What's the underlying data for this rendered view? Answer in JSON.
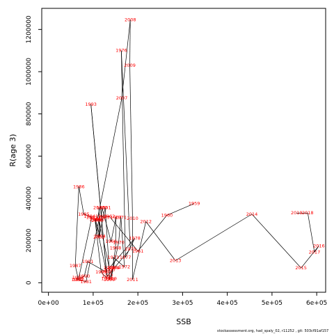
{
  "chart_data": {
    "type": "scatter",
    "xlabel": "SSB",
    "ylabel": "R(age 3)",
    "xlim": [
      -15000,
      620000
    ],
    "ylim": [
      -45000,
      1300000
    ],
    "x_ticks": [
      0,
      100000,
      200000,
      300000,
      400000,
      500000,
      600000
    ],
    "x_tick_labels": [
      "0e+00",
      "1e+05",
      "2e+05",
      "3e+05",
      "4e+05",
      "5e+05",
      "6e+05"
    ],
    "y_ticks": [
      0,
      200000,
      400000,
      600000,
      800000,
      1000000,
      1200000
    ],
    "y_tick_labels": [
      "0",
      "200000",
      "400000",
      "600000",
      "800000",
      "1000000",
      "1200000"
    ],
    "point_color": "#ff0000",
    "line_color": "#000000",
    "points": [
      {
        "label": "1959",
        "x": 326000,
        "y": 375000
      },
      {
        "label": "1960",
        "x": 265000,
        "y": 320000
      },
      {
        "label": "1961",
        "x": 200000,
        "y": 150000
      },
      {
        "label": "1962",
        "x": 136000,
        "y": 315000
      },
      {
        "label": "1963",
        "x": 124000,
        "y": 310000
      },
      {
        "label": "1964",
        "x": 118000,
        "y": 315000
      },
      {
        "label": "1965",
        "x": 120000,
        "y": 355000
      },
      {
        "label": "1966",
        "x": 140000,
        "y": 195000
      },
      {
        "label": "1967",
        "x": 151000,
        "y": 310000
      },
      {
        "label": "1968",
        "x": 150000,
        "y": 165000
      },
      {
        "label": "1969",
        "x": 140000,
        "y": 20000
      },
      {
        "label": "1970",
        "x": 157000,
        "y": 190000
      },
      {
        "label": "1971",
        "x": 162000,
        "y": 310000
      },
      {
        "label": "1972",
        "x": 170000,
        "y": 75000
      },
      {
        "label": "1973",
        "x": 145000,
        "y": 120000
      },
      {
        "label": "1974",
        "x": 147000,
        "y": 70000
      },
      {
        "label": "1975",
        "x": 183000,
        "y": 160000
      },
      {
        "label": "1976",
        "x": 163000,
        "y": 1100000
      },
      {
        "label": "1977",
        "x": 172000,
        "y": 120000
      },
      {
        "label": "1978",
        "x": 193000,
        "y": 210000
      },
      {
        "label": "1979",
        "x": 136000,
        "y": 70000
      },
      {
        "label": "1980",
        "x": 113000,
        "y": 300000
      },
      {
        "label": "1981",
        "x": 84000,
        "y": 5000
      },
      {
        "label": "1982",
        "x": 67000,
        "y": 15000
      },
      {
        "label": "1983",
        "x": 97000,
        "y": 310000
      },
      {
        "label": "1984",
        "x": 92000,
        "y": 315000
      },
      {
        "label": "1985",
        "x": 79000,
        "y": 325000
      },
      {
        "label": "1986",
        "x": 68000,
        "y": 455000
      },
      {
        "label": "1987",
        "x": 60000,
        "y": 80000
      },
      {
        "label": "1988",
        "x": 66000,
        "y": 25000
      },
      {
        "label": "1989",
        "x": 64000,
        "y": 15000
      },
      {
        "label": "1990",
        "x": 80000,
        "y": 30000
      },
      {
        "label": "1991",
        "x": 88000,
        "y": 100000
      },
      {
        "label": "1992",
        "x": 130000,
        "y": 50000
      },
      {
        "label": "1993",
        "x": 95000,
        "y": 845000
      },
      {
        "label": "1994",
        "x": 131000,
        "y": 20000
      },
      {
        "label": "1995",
        "x": 118000,
        "y": 50000
      },
      {
        "label": "1996",
        "x": 104000,
        "y": 300000
      },
      {
        "label": "1997",
        "x": 132000,
        "y": 30000
      },
      {
        "label": "1998",
        "x": 145000,
        "y": 70000
      },
      {
        "label": "1999",
        "x": 136000,
        "y": 15000
      },
      {
        "label": "2000",
        "x": 136000,
        "y": 60000
      },
      {
        "label": "2001",
        "x": 127000,
        "y": 355000
      },
      {
        "label": "2002",
        "x": 113000,
        "y": 215000
      },
      {
        "label": "2003",
        "x": 113000,
        "y": 355000
      },
      {
        "label": "2004",
        "x": 115000,
        "y": 220000
      },
      {
        "label": "2005",
        "x": 105000,
        "y": 300000
      },
      {
        "label": "2006",
        "x": 109000,
        "y": 295000
      },
      {
        "label": "2007",
        "x": 164000,
        "y": 875000
      },
      {
        "label": "2008",
        "x": 183000,
        "y": 1245000
      },
      {
        "label": "2009",
        "x": 182000,
        "y": 1030000
      },
      {
        "label": "2010",
        "x": 188000,
        "y": 305000
      },
      {
        "label": "2011",
        "x": 188000,
        "y": 15000
      },
      {
        "label": "2012",
        "x": 218000,
        "y": 290000
      },
      {
        "label": "2013",
        "x": 284000,
        "y": 105000
      },
      {
        "label": "2014",
        "x": 455000,
        "y": 325000
      },
      {
        "label": "2015",
        "x": 565000,
        "y": 70000
      },
      {
        "label": "2016",
        "x": 605000,
        "y": 175000
      },
      {
        "label": "2017",
        "x": 595000,
        "y": 145000
      },
      {
        "label": "2018",
        "x": 580000,
        "y": 330000
      },
      {
        "label": "2019",
        "x": 555000,
        "y": 330000
      }
    ]
  },
  "footer": {
    "note": "stockassessment.org, had_spaly_02, r11252 , git: 503cf91af157"
  }
}
